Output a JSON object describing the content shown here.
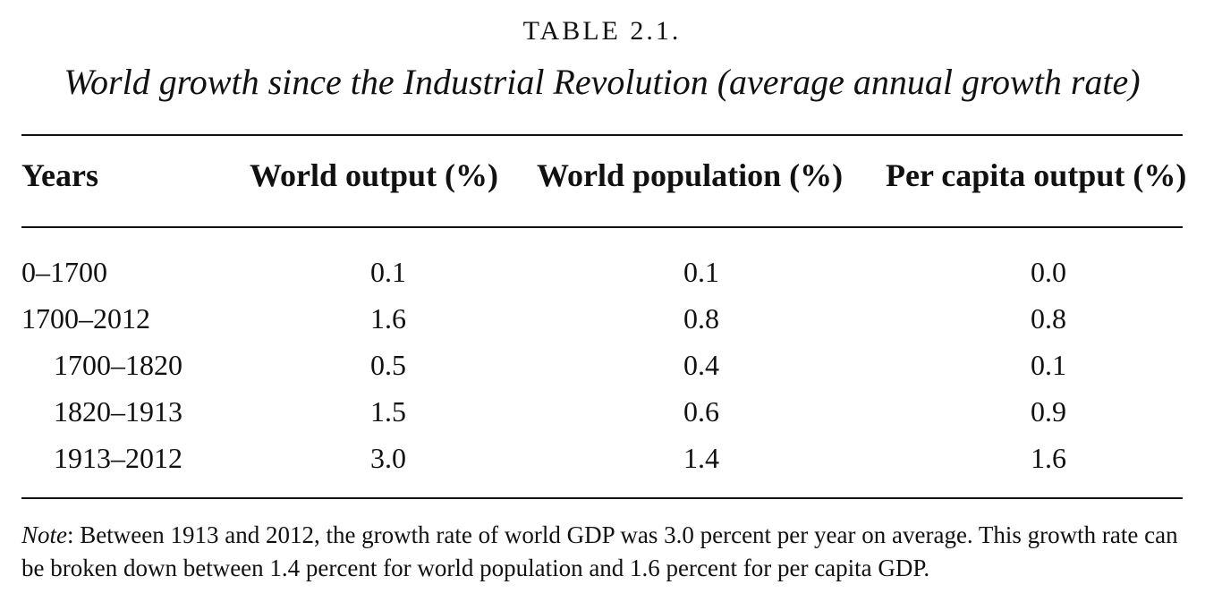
{
  "table": {
    "label": "TABLE 2.1.",
    "title": "World growth since the Industrial Revolution (average annual growth rate)",
    "headers": [
      "Years",
      "World output (%)",
      "World population (%)",
      "Per capita output (%)"
    ],
    "rows": [
      {
        "years": "0–1700",
        "world_output": "0.1",
        "world_population": "0.1",
        "per_capita_output": "0.0",
        "indented": false
      },
      {
        "years": "1700–2012",
        "world_output": "1.6",
        "world_population": "0.8",
        "per_capita_output": "0.8",
        "indented": false
      },
      {
        "years": "1700–1820",
        "world_output": "0.5",
        "world_population": "0.4",
        "per_capita_output": "0.1",
        "indented": true
      },
      {
        "years": "1820–1913",
        "world_output": "1.5",
        "world_population": "0.6",
        "per_capita_output": "0.9",
        "indented": true
      },
      {
        "years": "1913–2012",
        "world_output": "3.0",
        "world_population": "1.4",
        "per_capita_output": "1.6",
        "indented": true
      }
    ]
  },
  "note": {
    "label": "Note",
    "text": ": Between 1913 and 2012, the growth rate of world GDP was 3.0 percent per year on average. This growth rate can be broken down between 1.4 percent for world population and 1.6 percent for per capita GDP."
  }
}
